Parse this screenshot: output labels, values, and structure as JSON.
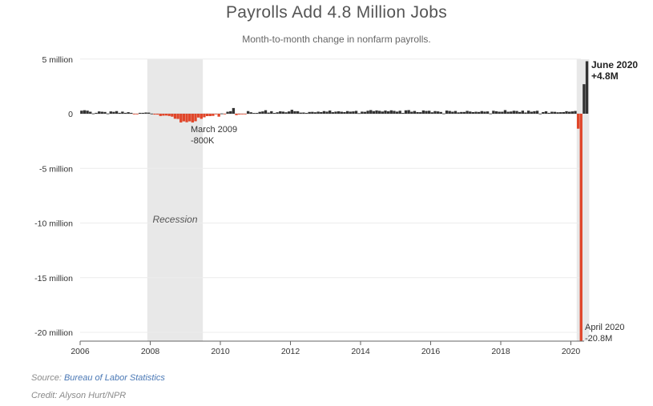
{
  "title": "Payrolls Add 4.8 Million Jobs",
  "subtitle": "Month-to-month change in nonfarm payrolls.",
  "source_prefix": "Source: ",
  "source_name": "Bureau of Labor Statistics",
  "credit": "Credit: Alyson Hurt/NPR",
  "chart_data": {
    "type": "bar",
    "x_start": "2006-01",
    "x_end": "2020-06",
    "ylim": [
      -21,
      5
    ],
    "y_ticks": [
      5,
      0,
      -5,
      -10,
      -15,
      -20
    ],
    "y_tick_labels": [
      "5 million",
      "0",
      "-5 million",
      "-10 million",
      "-15 million",
      "-20 million"
    ],
    "x_ticks": [
      2006,
      2008,
      2010,
      2012,
      2014,
      2016,
      2018,
      2020
    ],
    "x_tick_labels": [
      "2006",
      "2008",
      "2010",
      "2012",
      "2014",
      "2016",
      "2018",
      "2020"
    ],
    "units": "millions of jobs",
    "recession": {
      "label": "Recession",
      "start": "2007-12",
      "end": "2009-06"
    },
    "highlight_2020": {
      "start": "2020-03",
      "end": "2020-06"
    },
    "annotations": [
      {
        "id": "march-2009",
        "line1": "March 2009",
        "line2": "-800K",
        "date": "2009-03",
        "value": -0.8
      },
      {
        "id": "june-2020",
        "line1": "June 2020",
        "line2": "+4.8M",
        "date": "2020-06",
        "value": 4.8
      },
      {
        "id": "april-2020",
        "line1": "April 2020",
        "line2": "-20.8M",
        "date": "2020-04",
        "value": -20.8
      }
    ],
    "positive_color": "#333333",
    "negative_color": "#e0462a",
    "series": [
      {
        "year": 2006,
        "values": [
          0.28,
          0.32,
          0.28,
          0.18,
          0.02,
          0.08,
          0.21,
          0.18,
          0.16,
          0.02,
          0.21,
          0.17
        ]
      },
      {
        "year": 2007,
        "values": [
          0.24,
          0.08,
          0.19,
          0.08,
          0.14,
          0.08,
          -0.03,
          -0.02,
          0.08,
          0.08,
          0.11,
          0.1
        ]
      },
      {
        "year": 2008,
        "values": [
          0.01,
          -0.08,
          -0.08,
          -0.21,
          -0.18,
          -0.17,
          -0.21,
          -0.27,
          -0.46,
          -0.48,
          -0.8,
          -0.7
        ]
      },
      {
        "year": 2009,
        "values": [
          -0.78,
          -0.7,
          -0.8,
          -0.69,
          -0.35,
          -0.47,
          -0.33,
          -0.22,
          -0.22,
          -0.2,
          -0.01,
          -0.27
        ]
      },
      {
        "year": 2010,
        "values": [
          0.02,
          -0.05,
          0.18,
          0.23,
          0.52,
          -0.13,
          -0.07,
          -0.03,
          -0.06,
          0.24,
          0.13,
          0.07
        ]
      },
      {
        "year": 2011,
        "values": [
          0.07,
          0.17,
          0.21,
          0.32,
          0.1,
          0.23,
          0.07,
          0.13,
          0.22,
          0.19,
          0.13,
          0.21
        ]
      },
      {
        "year": 2012,
        "values": [
          0.36,
          0.23,
          0.23,
          0.1,
          0.11,
          0.07,
          0.16,
          0.17,
          0.13,
          0.19,
          0.15,
          0.24
        ]
      },
      {
        "year": 2013,
        "values": [
          0.19,
          0.29,
          0.14,
          0.19,
          0.22,
          0.18,
          0.15,
          0.24,
          0.19,
          0.21,
          0.26,
          0.05
        ]
      },
      {
        "year": 2014,
        "values": [
          0.19,
          0.17,
          0.27,
          0.33,
          0.24,
          0.3,
          0.26,
          0.2,
          0.29,
          0.22,
          0.31,
          0.26
        ]
      },
      {
        "year": 2015,
        "values": [
          0.19,
          0.27,
          0.07,
          0.31,
          0.33,
          0.18,
          0.25,
          0.15,
          0.14,
          0.3,
          0.25,
          0.27
        ]
      },
      {
        "year": 2016,
        "values": [
          0.13,
          0.24,
          0.21,
          0.16,
          0.02,
          0.29,
          0.25,
          0.18,
          0.25,
          0.12,
          0.16,
          0.16
        ]
      },
      {
        "year": 2017,
        "values": [
          0.26,
          0.2,
          0.15,
          0.18,
          0.16,
          0.24,
          0.19,
          0.21,
          0.02,
          0.27,
          0.22,
          0.18
        ]
      },
      {
        "year": 2018,
        "values": [
          0.18,
          0.33,
          0.18,
          0.2,
          0.27,
          0.25,
          0.16,
          0.28,
          0.11,
          0.28,
          0.18,
          0.23
        ]
      },
      {
        "year": 2019,
        "values": [
          0.27,
          0.01,
          0.15,
          0.22,
          0.08,
          0.18,
          0.17,
          0.13,
          0.14,
          0.15,
          0.23,
          0.18
        ]
      },
      {
        "year": 2020,
        "values": [
          0.21,
          0.25,
          -1.37,
          -20.8,
          2.7,
          4.8
        ]
      }
    ]
  }
}
